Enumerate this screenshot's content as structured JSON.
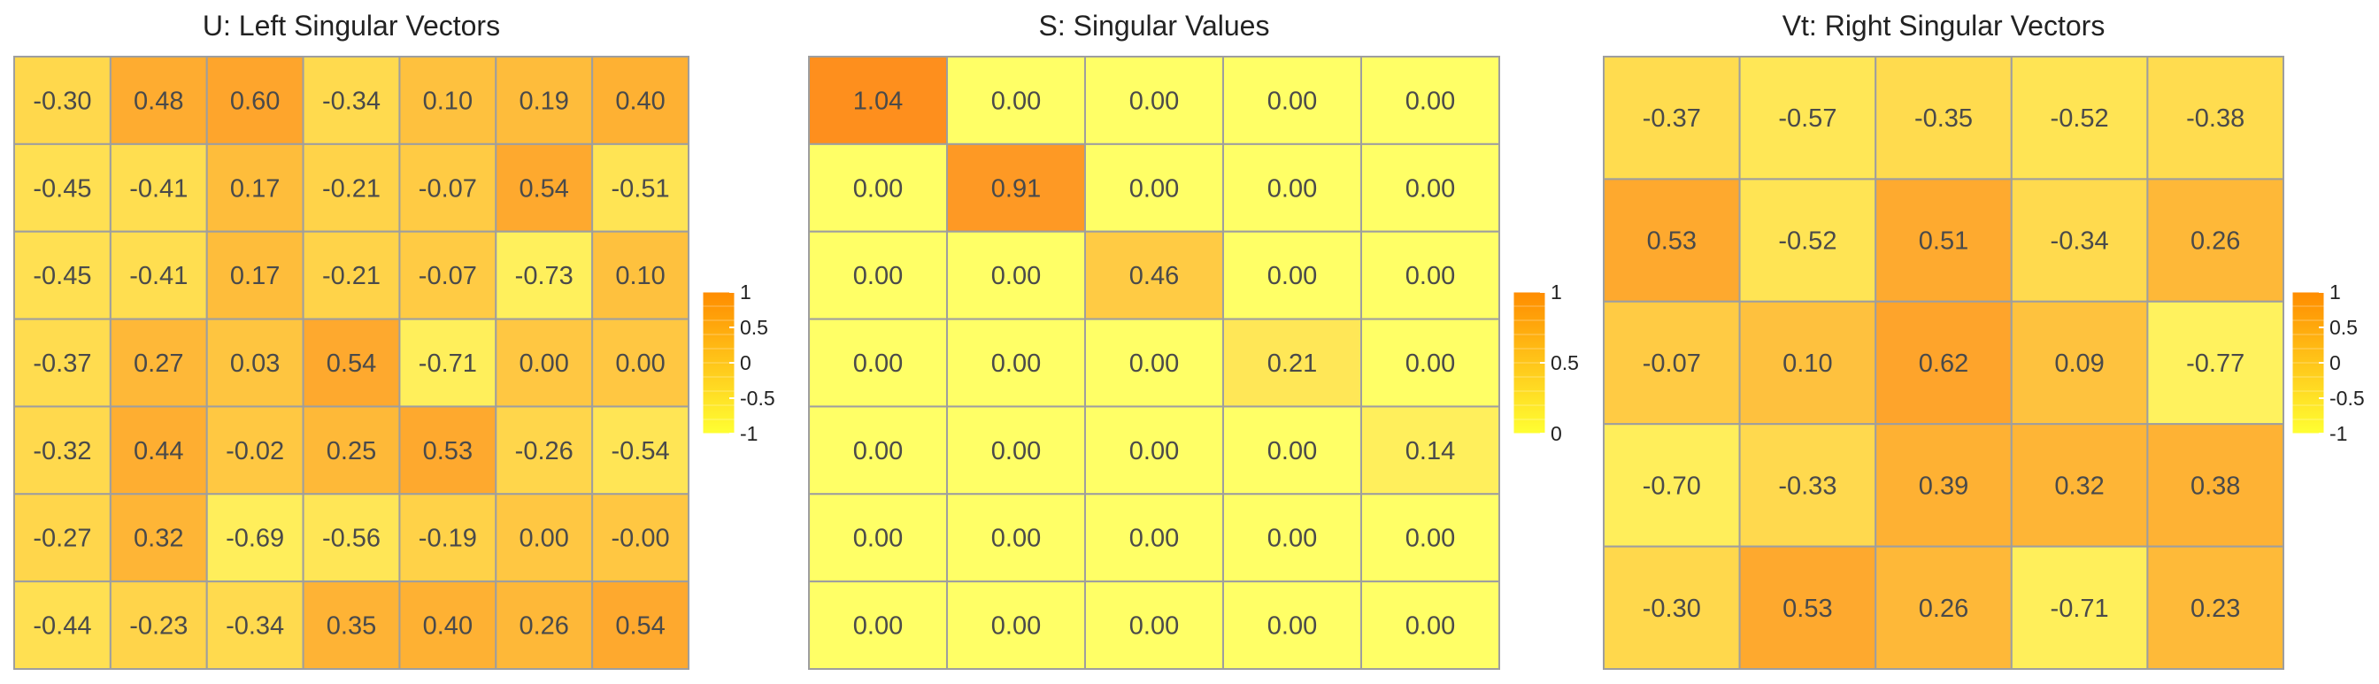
{
  "chart_data": [
    {
      "type": "heatmap",
      "title": "U: Left Singular Vectors",
      "rows": 7,
      "cols": 7,
      "values": [
        [
          -0.3,
          0.48,
          0.6,
          -0.34,
          0.1,
          0.19,
          0.4
        ],
        [
          -0.45,
          -0.41,
          0.17,
          -0.21,
          -0.07,
          0.54,
          -0.51
        ],
        [
          -0.45,
          -0.41,
          0.17,
          -0.21,
          -0.07,
          -0.73,
          0.1
        ],
        [
          -0.37,
          0.27,
          0.03,
          0.54,
          -0.71,
          0.0,
          0.0
        ],
        [
          -0.32,
          0.44,
          -0.02,
          0.25,
          0.53,
          -0.26,
          -0.54
        ],
        [
          -0.27,
          0.32,
          -0.69,
          -0.56,
          -0.19,
          0.0,
          -0.0
        ],
        [
          -0.44,
          -0.23,
          -0.34,
          0.35,
          0.4,
          0.26,
          0.54
        ]
      ],
      "labels": [
        [
          "-0.30",
          "0.48",
          "0.60",
          "-0.34",
          "0.10",
          "0.19",
          "0.40"
        ],
        [
          "-0.45",
          "-0.41",
          "0.17",
          "-0.21",
          "-0.07",
          "0.54",
          "-0.51"
        ],
        [
          "-0.45",
          "-0.41",
          "0.17",
          "-0.21",
          "-0.07",
          "-0.73",
          "0.10"
        ],
        [
          "-0.37",
          "0.27",
          "0.03",
          "0.54",
          "-0.71",
          "0.00",
          "0.00"
        ],
        [
          "-0.32",
          "0.44",
          "-0.02",
          "0.25",
          "0.53",
          "-0.26",
          "-0.54"
        ],
        [
          "-0.27",
          "0.32",
          "-0.69",
          "-0.56",
          "-0.19",
          "0.00",
          "-0.00"
        ],
        [
          "-0.44",
          "-0.23",
          "-0.34",
          "0.35",
          "0.40",
          "0.26",
          "0.54"
        ]
      ],
      "color_range": [
        -1,
        1
      ],
      "colorbar_ticks": [
        "1",
        "0.5",
        "0",
        "-0.5",
        "-1"
      ],
      "colorbar_tick_values": [
        1,
        0.5,
        0,
        -0.5,
        -1
      ]
    },
    {
      "type": "heatmap",
      "title": "S: Singular Values",
      "rows": 7,
      "cols": 5,
      "values": [
        [
          1.04,
          0.0,
          0.0,
          0.0,
          0.0
        ],
        [
          0.0,
          0.91,
          0.0,
          0.0,
          0.0
        ],
        [
          0.0,
          0.0,
          0.46,
          0.0,
          0.0
        ],
        [
          0.0,
          0.0,
          0.0,
          0.21,
          0.0
        ],
        [
          0.0,
          0.0,
          0.0,
          0.0,
          0.14
        ],
        [
          0.0,
          0.0,
          0.0,
          0.0,
          0.0
        ],
        [
          0.0,
          0.0,
          0.0,
          0.0,
          0.0
        ]
      ],
      "labels": [
        [
          "1.04",
          "0.00",
          "0.00",
          "0.00",
          "0.00"
        ],
        [
          "0.00",
          "0.91",
          "0.00",
          "0.00",
          "0.00"
        ],
        [
          "0.00",
          "0.00",
          "0.46",
          "0.00",
          "0.00"
        ],
        [
          "0.00",
          "0.00",
          "0.00",
          "0.21",
          "0.00"
        ],
        [
          "0.00",
          "0.00",
          "0.00",
          "0.00",
          "0.14"
        ],
        [
          "0.00",
          "0.00",
          "0.00",
          "0.00",
          "0.00"
        ],
        [
          "0.00",
          "0.00",
          "0.00",
          "0.00",
          "0.00"
        ]
      ],
      "color_range": [
        0,
        1
      ],
      "colorbar_ticks": [
        "1",
        "0.5",
        "0"
      ],
      "colorbar_tick_values": [
        1,
        0.5,
        0
      ]
    },
    {
      "type": "heatmap",
      "title": "Vt: Right Singular Vectors",
      "rows": 5,
      "cols": 5,
      "values": [
        [
          -0.37,
          -0.57,
          -0.35,
          -0.52,
          -0.38
        ],
        [
          0.53,
          -0.52,
          0.51,
          -0.34,
          0.26
        ],
        [
          -0.07,
          0.1,
          0.62,
          0.09,
          -0.77
        ],
        [
          -0.7,
          -0.33,
          0.39,
          0.32,
          0.38
        ],
        [
          -0.3,
          0.53,
          0.26,
          -0.71,
          0.23
        ]
      ],
      "labels": [
        [
          "-0.37",
          "-0.57",
          "-0.35",
          "-0.52",
          "-0.38"
        ],
        [
          "0.53",
          "-0.52",
          "0.51",
          "-0.34",
          "0.26"
        ],
        [
          "-0.07",
          "0.10",
          "0.62",
          "0.09",
          "-0.77"
        ],
        [
          "-0.70",
          "-0.33",
          "0.39",
          "0.32",
          "0.38"
        ],
        [
          "-0.30",
          "0.53",
          "0.26",
          "-0.71",
          "0.23"
        ]
      ],
      "color_range": [
        -1,
        1
      ],
      "colorbar_ticks": [
        "1",
        "0.5",
        "0",
        "-0.5",
        "-1"
      ],
      "colorbar_tick_values": [
        1,
        0.5,
        0,
        -0.5,
        -1
      ]
    }
  ],
  "colors": {
    "low": "#ffff66",
    "high": "#fe8f1d",
    "grid_line": "#9e9e9e",
    "cell_text": "#4a4a4a",
    "title_text": "#222222"
  }
}
